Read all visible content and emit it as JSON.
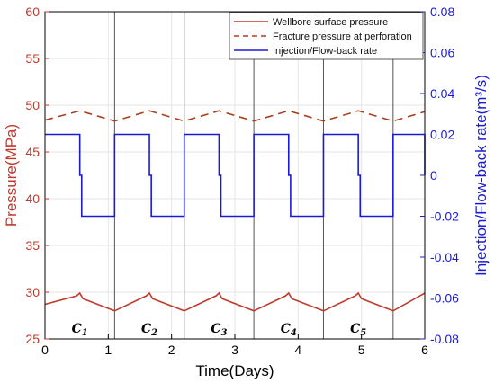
{
  "chart_data": {
    "type": "line",
    "xlabel": "Time(Days)",
    "ylabel_left": "Pressure(MPa)",
    "ylabel_right": "Injection/Flow-back rate(m³/s)",
    "xlim": [
      0,
      6
    ],
    "ylim_left": [
      25,
      60
    ],
    "ylim_right": [
      -0.08,
      0.08
    ],
    "xticks": [
      "0",
      "1",
      "2",
      "3",
      "4",
      "5",
      "6"
    ],
    "yticks_left": [
      "25",
      "30",
      "35",
      "40",
      "45",
      "50",
      "55",
      "60"
    ],
    "yticks_right": [
      "-0.08",
      "-0.06",
      "-0.04",
      "-0.02",
      "0",
      "0.02",
      "0.04",
      "0.06",
      "0.08"
    ],
    "grid": true,
    "legend_position": "top-right",
    "cycle_lines_x": [
      1.1,
      2.2,
      3.3,
      4.4,
      5.5
    ],
    "cycle_labels": [
      {
        "base": "C",
        "sub": "1",
        "x": 0.55
      },
      {
        "base": "C",
        "sub": "2",
        "x": 1.65
      },
      {
        "base": "C",
        "sub": "3",
        "x": 2.75
      },
      {
        "base": "C",
        "sub": "4",
        "x": 3.85
      },
      {
        "base": "C",
        "sub": "5",
        "x": 4.95
      }
    ],
    "series": [
      {
        "name": "Wellbore surface pressure",
        "axis": "left",
        "color": "#c0392b",
        "style": "solid",
        "x": [
          0,
          0.5,
          0.55,
          0.6,
          1.1,
          1.6,
          1.65,
          1.7,
          2.2,
          2.7,
          2.75,
          2.8,
          3.3,
          3.8,
          3.85,
          3.9,
          4.4,
          4.9,
          4.95,
          5.0,
          5.5,
          6.0
        ],
        "y": [
          28.7,
          29.6,
          29.9,
          29.3,
          28.0,
          29.6,
          29.9,
          29.3,
          28.0,
          29.6,
          29.9,
          29.3,
          28.0,
          29.6,
          29.9,
          29.3,
          28.0,
          29.6,
          29.9,
          29.3,
          28.0,
          29.9
        ]
      },
      {
        "name": "Fracture pressure at perforation",
        "axis": "left",
        "color": "#a9401c",
        "style": "dashed",
        "x": [
          0,
          0.55,
          1.1,
          1.65,
          2.2,
          2.75,
          3.3,
          3.85,
          4.4,
          4.95,
          5.5,
          6.0
        ],
        "y": [
          48.4,
          49.4,
          48.3,
          49.4,
          48.3,
          49.4,
          48.3,
          49.4,
          48.3,
          49.4,
          48.3,
          49.3
        ]
      },
      {
        "name": "Injection/Flow-back rate",
        "axis": "right",
        "color": "#1a1ad6",
        "style": "solid",
        "x": [
          0,
          0.55,
          0.55,
          0.58,
          0.58,
          1.1,
          1.1,
          1.65,
          1.65,
          1.68,
          1.68,
          2.2,
          2.2,
          2.75,
          2.75,
          2.78,
          2.78,
          3.3,
          3.3,
          3.85,
          3.85,
          3.88,
          3.88,
          4.4,
          4.4,
          4.95,
          4.95,
          4.98,
          4.98,
          5.5,
          5.5,
          6.0,
          6.0
        ],
        "y": [
          0.02,
          0.02,
          0.0,
          0.0,
          -0.02,
          -0.02,
          0.02,
          0.02,
          0.0,
          0.0,
          -0.02,
          -0.02,
          0.02,
          0.02,
          0.0,
          0.0,
          -0.02,
          -0.02,
          0.02,
          0.02,
          0.0,
          0.0,
          -0.02,
          -0.02,
          0.02,
          0.02,
          0.0,
          0.0,
          -0.02,
          -0.02,
          0.02,
          0.02,
          0.0
        ]
      }
    ]
  },
  "colors": {
    "left_axis": "#c0392b",
    "right_axis": "#1a1ad6",
    "grid": "#e6e6e6",
    "cycle_line": "#555555"
  }
}
